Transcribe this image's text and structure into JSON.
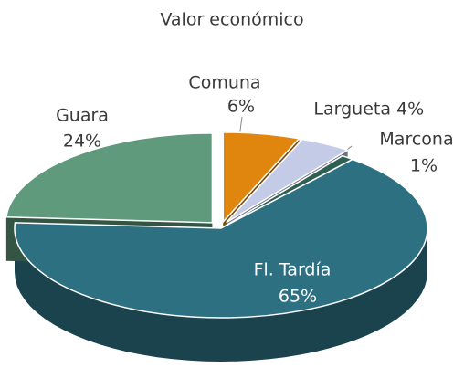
{
  "chart_data": {
    "type": "pie3d",
    "title": "Valor económico",
    "categories": [
      "Comuna",
      "Largueta",
      "Marcona",
      "Fl. Tardía",
      "Guara"
    ],
    "values": [
      6,
      4,
      1,
      65,
      24
    ],
    "value_labels": [
      "6%",
      "4%",
      "1%",
      "65%",
      "24%"
    ],
    "colors": [
      "#e0860f",
      "#c3cbe6",
      "#2f5e52",
      "#2d7081",
      "#5e9a7b"
    ]
  }
}
